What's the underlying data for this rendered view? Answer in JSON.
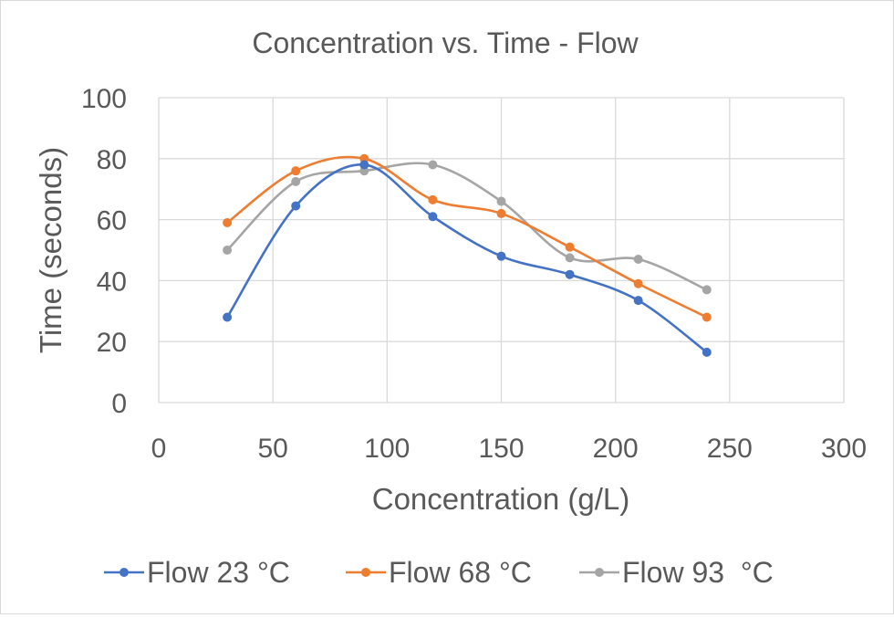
{
  "chart_data": {
    "type": "line",
    "title": "Concentration vs. Time - Flow",
    "xlabel": "Concentration (g/L)",
    "ylabel": "Time (seconds)",
    "xlim": [
      0,
      300
    ],
    "ylim": [
      0,
      100
    ],
    "x_ticks": [
      0,
      50,
      100,
      150,
      200,
      250,
      300
    ],
    "y_ticks": [
      0,
      20,
      40,
      60,
      80,
      100
    ],
    "grid": true,
    "smooth": true,
    "legend_position": "bottom",
    "x": [
      30,
      60,
      90,
      120,
      150,
      180,
      210,
      240
    ],
    "series": [
      {
        "name": "Flow 23 °C",
        "color": "#4472c4",
        "values": [
          28,
          64.5,
          78,
          61,
          48,
          42,
          33.5,
          16.5
        ]
      },
      {
        "name": "Flow 68 °C",
        "color": "#ed7d31",
        "values": [
          59,
          76,
          80,
          66.5,
          62,
          51,
          39,
          28
        ]
      },
      {
        "name": "Flow 93  °C",
        "color": "#a5a5a5",
        "values": [
          50,
          72.5,
          76,
          78,
          66,
          47.5,
          47,
          37
        ]
      }
    ]
  }
}
